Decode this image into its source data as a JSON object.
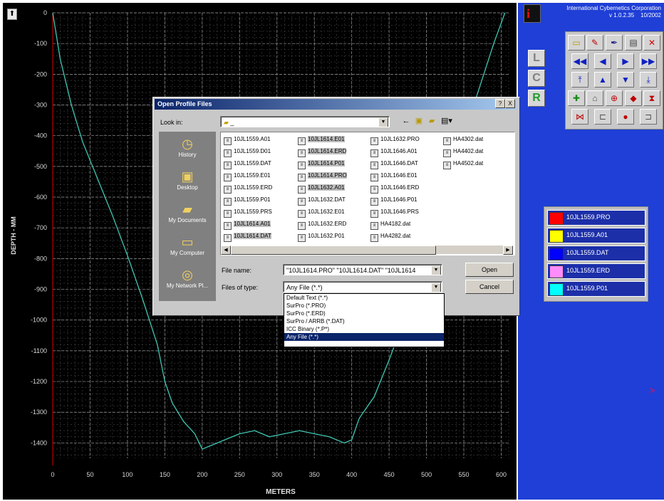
{
  "chart": {
    "ylabel": "DEPTH - MM",
    "xlabel": "METERS",
    "line_color": "#3fc7b3"
  },
  "chart_data": {
    "type": "line",
    "title": "",
    "xlabel": "METERS",
    "ylabel": "DEPTH - MM",
    "x_ticks": [
      0,
      50,
      100,
      150,
      200,
      250,
      300,
      350,
      400,
      450,
      500,
      550,
      600
    ],
    "y_ticks": [
      0,
      -100,
      -200,
      -300,
      -400,
      -500,
      -600,
      -700,
      -800,
      -900,
      -1000,
      -1100,
      -1200,
      -1300,
      -1400
    ],
    "xlim": [
      0,
      610
    ],
    "ylim": [
      -1450,
      0
    ],
    "grid": true,
    "series": [
      {
        "values_x": [
          0,
          10,
          25,
          40,
          60,
          80,
          100,
          120,
          140,
          150,
          160,
          175,
          190,
          200,
          210,
          230,
          250,
          270,
          290,
          310,
          330,
          350,
          370,
          390,
          400,
          410,
          430,
          450,
          470,
          490,
          510,
          530,
          550,
          570,
          590,
          605
        ],
        "values_y": [
          0,
          -150,
          -300,
          -420,
          -540,
          -660,
          -790,
          -930,
          -1080,
          -1200,
          -1270,
          -1330,
          -1370,
          -1420,
          -1410,
          -1390,
          -1370,
          -1360,
          -1380,
          -1370,
          -1360,
          -1370,
          -1380,
          -1400,
          -1390,
          -1320,
          -1250,
          -1130,
          -1000,
          -860,
          -700,
          -560,
          -400,
          -250,
          -100,
          0
        ]
      }
    ]
  },
  "top_button_label": "⬆",
  "app": {
    "company": "International Cybernetics Corporation",
    "version": "v 1.0.2.35",
    "date": "10/2002",
    "logo_letter": "i"
  },
  "lcr": [
    {
      "label": "L",
      "color": "#808080"
    },
    {
      "label": "C",
      "color": "#808080"
    },
    {
      "label": "R",
      "color": "#1f9d2a"
    }
  ],
  "toolbox": [
    {
      "icon": "folder-icon",
      "glyph": "▭",
      "color": "#b89a00"
    },
    {
      "icon": "pencil-icon",
      "glyph": "✎",
      "color": "#c00000"
    },
    {
      "icon": "pen-icon",
      "glyph": "✒",
      "color": "#2a2a8a"
    },
    {
      "icon": "printer-icon",
      "glyph": "▤",
      "color": "#404040"
    },
    {
      "icon": "close-icon",
      "glyph": "✕",
      "color": "#d00000"
    },
    {
      "icon": "first-icon",
      "glyph": "◀◀",
      "color": "#1020c0"
    },
    {
      "icon": "prev-icon",
      "glyph": "◀",
      "color": "#1020c0"
    },
    {
      "icon": "next-icon",
      "glyph": "▶",
      "color": "#1020c0"
    },
    {
      "icon": "last-icon",
      "glyph": "▶▶",
      "color": "#1020c0"
    },
    {
      "icon": "top-icon",
      "glyph": "⤒",
      "color": "#1020c0"
    },
    {
      "icon": "up-icon",
      "glyph": "▲",
      "color": "#1020c0"
    },
    {
      "icon": "down-icon",
      "glyph": "▼",
      "color": "#1020c0"
    },
    {
      "icon": "bottom-icon",
      "glyph": "⤓",
      "color": "#1020c0"
    },
    {
      "icon": "target-icon",
      "glyph": "✚",
      "color": "#1a8a1a"
    },
    {
      "icon": "lock-icon",
      "glyph": "⌂",
      "color": "#505050"
    },
    {
      "icon": "crosshair-icon",
      "glyph": "⊕",
      "color": "#c00000"
    },
    {
      "icon": "center-icon",
      "glyph": "◆",
      "color": "#c00000"
    },
    {
      "icon": "hourglass-icon",
      "glyph": "⧗",
      "color": "#c00000"
    },
    {
      "icon": "bowtie-icon",
      "glyph": "⋈",
      "color": "#c00000"
    },
    {
      "icon": "frame-icon",
      "glyph": "⊏",
      "color": "#505050"
    },
    {
      "icon": "dot-icon",
      "glyph": "●",
      "color": "#c00000"
    },
    {
      "icon": "corner-icon",
      "glyph": "⊐",
      "color": "#505050"
    }
  ],
  "loaded_files": [
    {
      "name": "10JL1559.PRO",
      "color": "#ff0000"
    },
    {
      "name": "10JL1559.A01",
      "color": "#ffff00"
    },
    {
      "name": "10JL1559.DAT",
      "color": "#0000ff"
    },
    {
      "name": "10JL1559.ERD",
      "color": "#ff8cff"
    },
    {
      "name": "10JL1559.P01",
      "color": "#00ffff"
    }
  ],
  "dialog": {
    "title": "Open Profile Files",
    "help_btn": "?",
    "close_btn": "X",
    "look_in_label": "Look in:",
    "look_in_value": "_",
    "places": [
      {
        "label": "History",
        "icon": "history-icon",
        "glyph": "◷"
      },
      {
        "label": "Desktop",
        "icon": "desktop-icon",
        "glyph": "▣"
      },
      {
        "label": "My Documents",
        "icon": "folder-icon",
        "glyph": "▰"
      },
      {
        "label": "My Computer",
        "icon": "computer-icon",
        "glyph": "▭"
      },
      {
        "label": "My Network Pl...",
        "icon": "network-icon",
        "glyph": "◎"
      }
    ],
    "files_col1": [
      "10JL1559.A01",
      "10JL1559.D01",
      "10JL1559.DAT",
      "10JL1559.E01",
      "10JL1559.ERD",
      "10JL1559.P01",
      "10JL1559.PRS",
      "10JL1614.A01",
      "10JL1614.DAT"
    ],
    "files_col2": [
      "10JL1614.E01",
      "10JL1614.ERD",
      "10JL1614.P01",
      "10JL1614.PRO",
      "10JL1632.A01",
      "10JL1632.DAT",
      "10JL1632.E01",
      "10JL1632.ERD",
      "10JL1632.P01"
    ],
    "files_col3": [
      "10JL1632.PRO",
      "10JL1646.A01",
      "10JL1646.DAT",
      "10JL1646.E01",
      "10JL1646.ERD",
      "10JL1646.P01",
      "10JL1646.PRS",
      "HA4182.dat",
      "HA4282.dat"
    ],
    "files_col4": [
      "HA4302.dat",
      "HA4402.dat",
      "HA4502.dat"
    ],
    "file_name_label": "File name:",
    "file_name_value": "\"10JL1614.PRO\" \"10JL1614.DAT\" \"10JL1614",
    "file_type_label": "Files of type:",
    "file_type_value": "Any File (*.*)",
    "open_btn": "Open",
    "cancel_btn": "Cancel",
    "type_options": [
      "Default Text (*.*)",
      "SurPro (*.PRO)",
      "SurPro (*.ERD)",
      "SurPro / ARRB (*.DAT)",
      "ICC Binary (*.P*)",
      "Any File (*.*)"
    ]
  }
}
